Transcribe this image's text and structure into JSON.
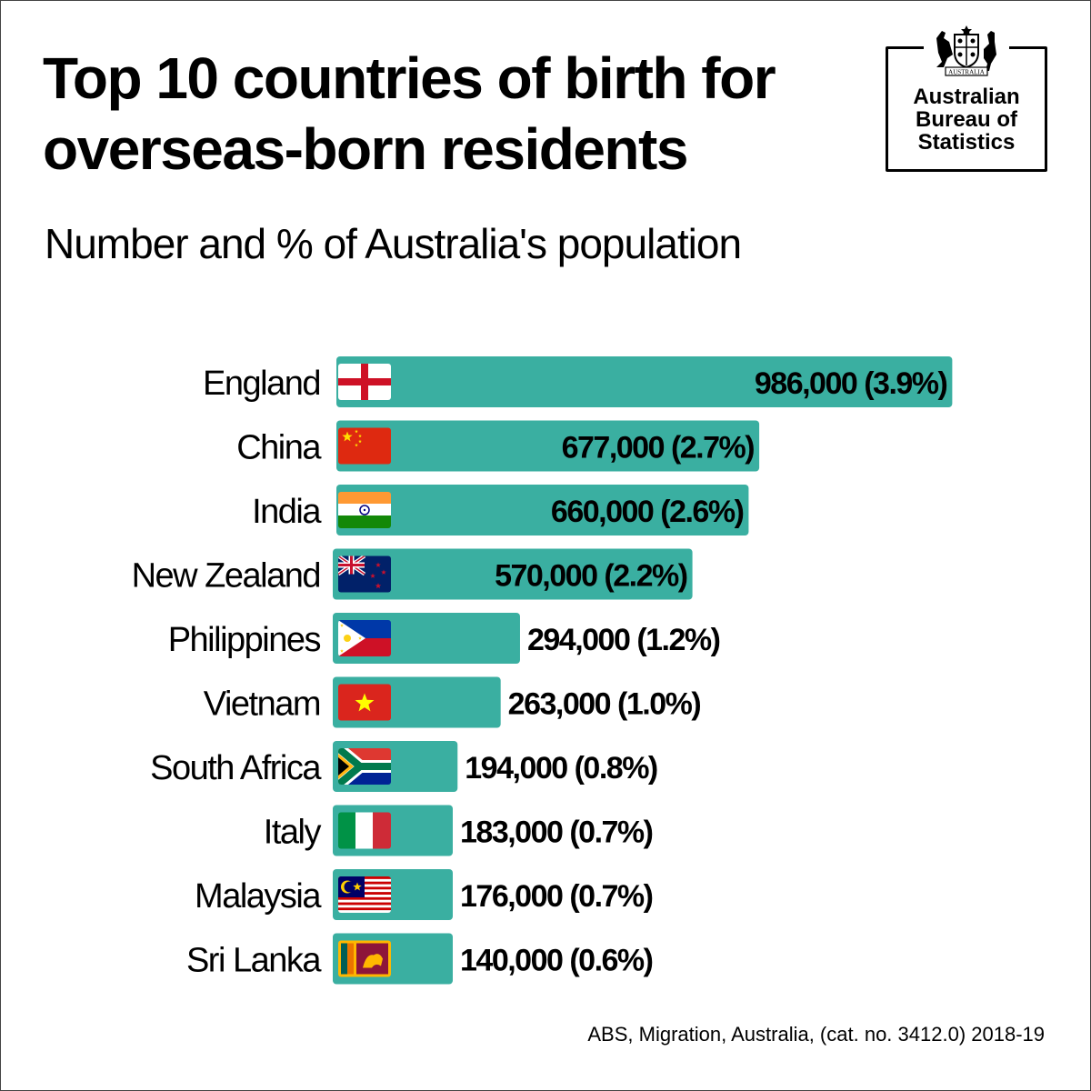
{
  "title": "Top 10 countries of birth for overseas-born residents",
  "subtitle": "Number and % of Australia's population",
  "logo": {
    "crest_text": "AUSTRALIA",
    "name": "Australian\nBureau of\nStatistics",
    "icon": "coat-of-arms-icon"
  },
  "source": "ABS, Migration, Australia, (cat. no. 3412.0) 2018-19",
  "colors": {
    "bar": "#3aafa1",
    "text": "#000000",
    "background": "#ffffff"
  },
  "chart_data": {
    "type": "bar",
    "orientation": "horizontal",
    "categories": [
      "England",
      "China",
      "India",
      "New Zealand",
      "Philippines",
      "Vietnam",
      "South Africa",
      "Italy",
      "Malaysia",
      "Sri Lanka"
    ],
    "values": [
      986000,
      677000,
      660000,
      570000,
      294000,
      263000,
      194000,
      183000,
      176000,
      140000
    ],
    "labels": [
      "986,000 (3.9%)",
      "677,000 (2.7%)",
      "660,000 (2.6%)",
      "570,000 (2.2%)",
      "294,000 (1.2%)",
      "263,000 (1.0%)",
      "194,000 (0.8%)",
      "183,000 (0.7%)",
      "176,000 (0.7%)",
      "140,000 (0.6%)"
    ],
    "flags": [
      "england-flag-icon",
      "china-flag-icon",
      "india-flag-icon",
      "new-zealand-flag-icon",
      "philippines-flag-icon",
      "vietnam-flag-icon",
      "south-africa-flag-icon",
      "italy-flag-icon",
      "malaysia-flag-icon",
      "sri-lanka-flag-icon"
    ],
    "xlim": [
      0,
      1000000
    ],
    "grid": false,
    "legend": "none"
  }
}
